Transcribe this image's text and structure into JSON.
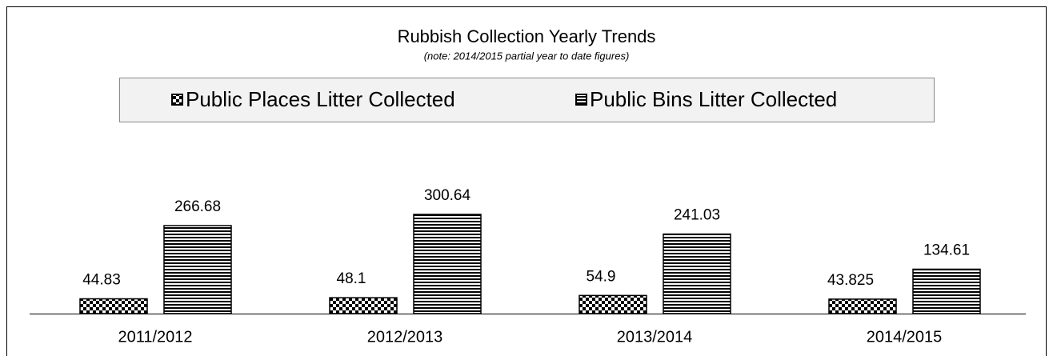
{
  "chart_data": {
    "type": "bar",
    "title": "Rubbish Collection Yearly Trends",
    "subtitle": "(note: 2014/2015 partial year to date figures)",
    "categories": [
      "2011/2012",
      "2012/2013",
      "2013/2014",
      "2014/2015"
    ],
    "series": [
      {
        "name": "Public Places Litter Collected",
        "color": "#000000",
        "values": [
          44.83,
          48.1,
          54.9,
          43.825
        ]
      },
      {
        "name": "Public Bins Litter Collected",
        "color": "#000000",
        "values": [
          266.68,
          300.64,
          241.03,
          134.61
        ]
      }
    ],
    "legend": "top"
  }
}
